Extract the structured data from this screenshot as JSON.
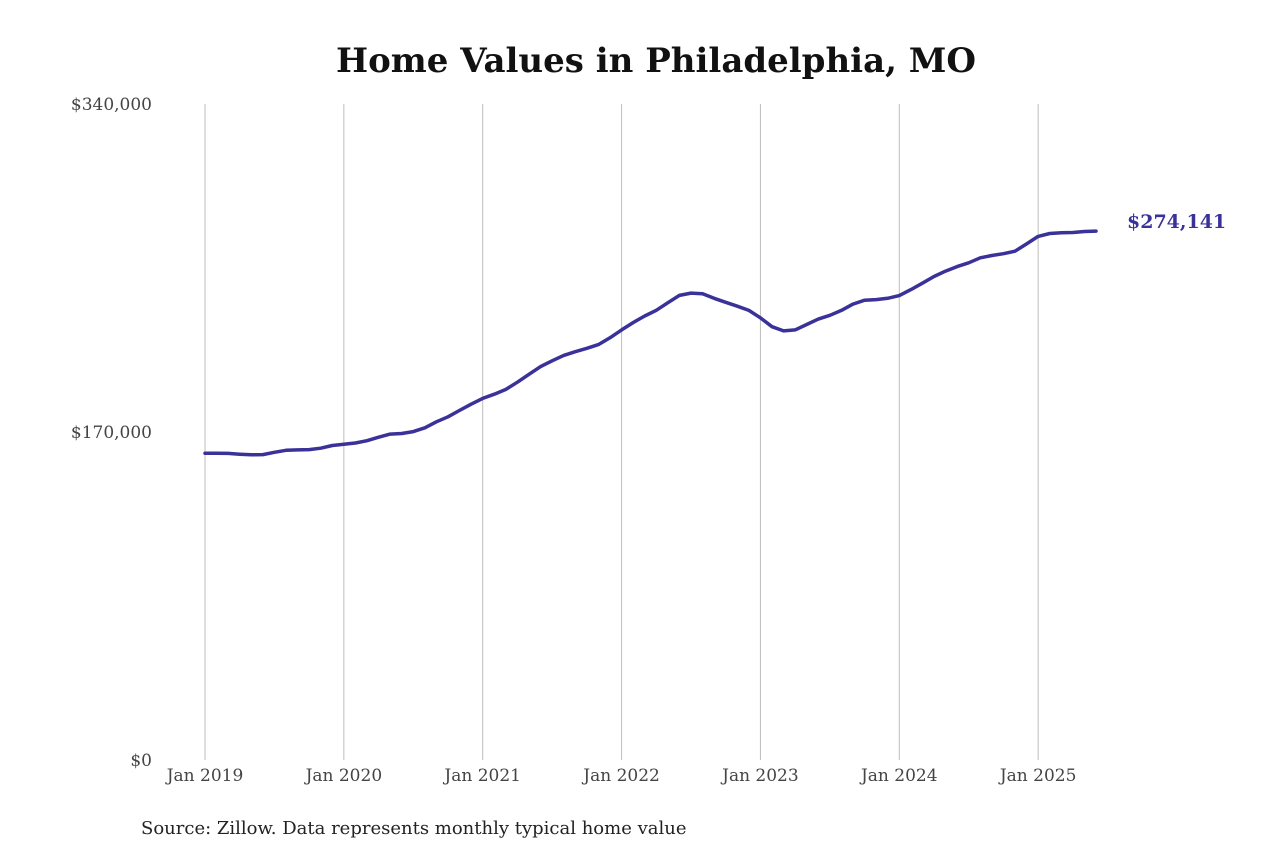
{
  "chart_data": {
    "type": "line",
    "title": "Home Values in Philadelphia, MO",
    "xlabel": "",
    "ylabel": "",
    "source": "Source: Zillow. Data represents monthly typical home value",
    "ylim": [
      0,
      340000
    ],
    "y_ticks": [
      {
        "value": 0,
        "label": "$0"
      },
      {
        "value": 170000,
        "label": "$170,000"
      },
      {
        "value": 340000,
        "label": "$340,000"
      }
    ],
    "x_ticks": [
      {
        "value": "2019-01",
        "label": "Jan 2019"
      },
      {
        "value": "2020-01",
        "label": "Jan 2020"
      },
      {
        "value": "2021-01",
        "label": "Jan 2021"
      },
      {
        "value": "2022-01",
        "label": "Jan 2022"
      },
      {
        "value": "2023-01",
        "label": "Jan 2023"
      },
      {
        "value": "2024-01",
        "label": "Jan 2024"
      },
      {
        "value": "2025-01",
        "label": "Jan 2025"
      }
    ],
    "x_range": [
      "2019-01",
      "2026-01"
    ],
    "grid": {
      "vertical": true,
      "horizontal": false
    },
    "line_color": "#3a3199",
    "end_label": "$274,141",
    "series": [
      {
        "name": "",
        "x": [
          "2019-01",
          "2019-02",
          "2019-03",
          "2019-04",
          "2019-05",
          "2019-06",
          "2019-07",
          "2019-08",
          "2019-09",
          "2019-10",
          "2019-11",
          "2019-12",
          "2020-01",
          "2020-02",
          "2020-03",
          "2020-04",
          "2020-05",
          "2020-06",
          "2020-07",
          "2020-08",
          "2020-09",
          "2020-10",
          "2020-11",
          "2020-12",
          "2021-01",
          "2021-02",
          "2021-03",
          "2021-04",
          "2021-05",
          "2021-06",
          "2021-07",
          "2021-08",
          "2021-09",
          "2021-10",
          "2021-11",
          "2021-12",
          "2022-01",
          "2022-02",
          "2022-03",
          "2022-04",
          "2022-05",
          "2022-06",
          "2022-07",
          "2022-08",
          "2022-09",
          "2022-10",
          "2022-11",
          "2022-12",
          "2023-01",
          "2023-02",
          "2023-03",
          "2023-04",
          "2023-05",
          "2023-06",
          "2023-07",
          "2023-08",
          "2023-09",
          "2023-10",
          "2023-11",
          "2023-12",
          "2024-01",
          "2024-02",
          "2024-03",
          "2024-04",
          "2024-05",
          "2024-06",
          "2024-07",
          "2024-08",
          "2024-09",
          "2024-10",
          "2024-11",
          "2024-12",
          "2025-01",
          "2025-02",
          "2025-03",
          "2025-04",
          "2025-05",
          "2025-06"
        ],
        "values": [
          159000,
          159000,
          158900,
          158500,
          158200,
          158300,
          159500,
          160500,
          160700,
          160900,
          161600,
          163000,
          163600,
          164300,
          165500,
          167300,
          168900,
          169200,
          170200,
          172200,
          175300,
          177900,
          181200,
          184400,
          187400,
          189600,
          192100,
          195800,
          199900,
          203900,
          206900,
          209700,
          211600,
          213400,
          215300,
          218800,
          222900,
          226700,
          230100,
          233100,
          237000,
          240800,
          242000,
          241700,
          239300,
          237200,
          235200,
          233000,
          229200,
          224600,
          222400,
          222900,
          225700,
          228500,
          230500,
          233000,
          236300,
          238300,
          238600,
          239300,
          240700,
          243800,
          247100,
          250600,
          253400,
          255700,
          257700,
          260300,
          261500,
          262400,
          263700,
          267500,
          271400,
          272900,
          273300,
          273400,
          273900,
          274141
        ]
      }
    ]
  }
}
